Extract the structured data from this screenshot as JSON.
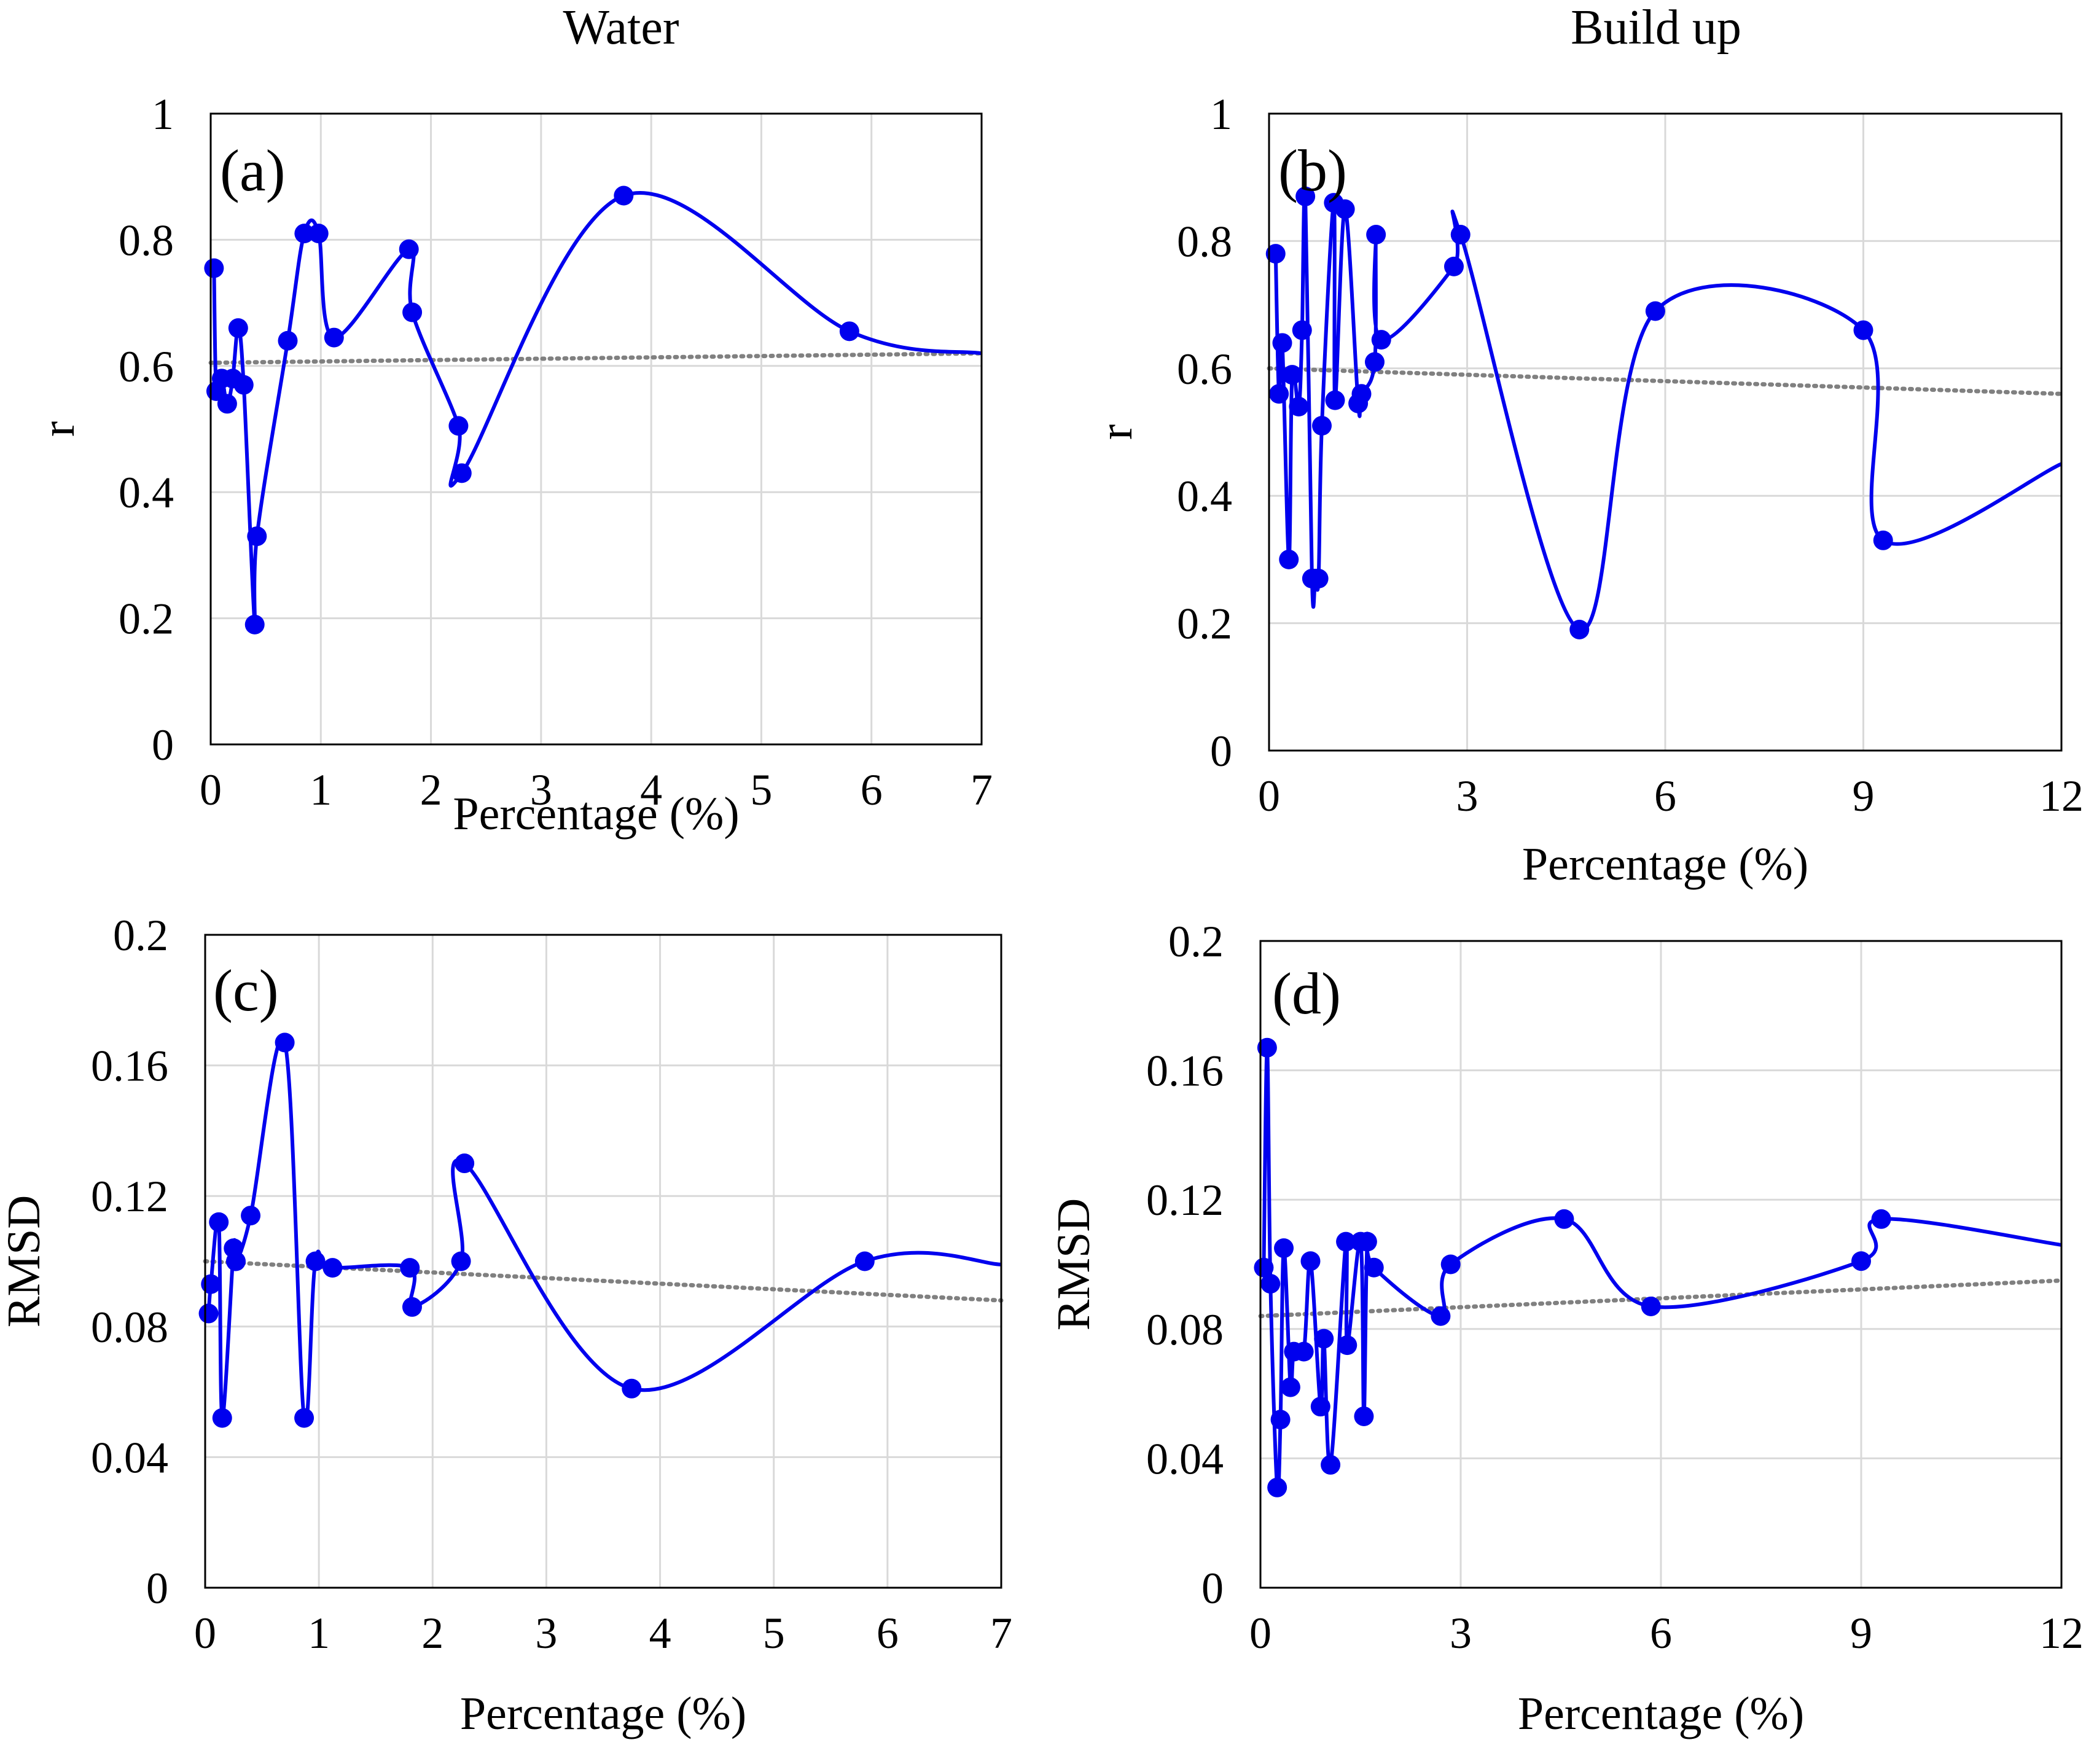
{
  "column_titles": [
    "Water",
    "Build up"
  ],
  "colors": {
    "series": "#0000ee",
    "trend": "#808080",
    "grid": "#d9d9d9",
    "frame": "#000000"
  },
  "chart_data": [
    {
      "id": "a",
      "panel_label": "(a)",
      "type": "line",
      "xlabel": "Percentage (%)",
      "ylabel": "r",
      "xlim": [
        0,
        7
      ],
      "ylim": [
        0,
        1
      ],
      "xticks": [
        0,
        1,
        2,
        3,
        4,
        5,
        6,
        7
      ],
      "xtick_labels": [
        "0",
        "1",
        "2",
        "3",
        "4",
        "5",
        "6",
        "7"
      ],
      "yticks": [
        0,
        0.2,
        0.4,
        0.6,
        0.8,
        1
      ],
      "ytick_labels": [
        "0",
        "0.2",
        "0.4",
        "0.6",
        "0.8",
        "1"
      ],
      "grid": true,
      "legend": "none",
      "series": [
        {
          "x": [
            0.03,
            0.05,
            0.1,
            0.15,
            0.2,
            0.25,
            0.3,
            0.4,
            0.42,
            0.7,
            0.85,
            0.98,
            1.12,
            1.8,
            1.83,
            2.25,
            2.28,
            3.75,
            5.8,
            7.0
          ],
          "y": [
            0.755,
            0.56,
            0.58,
            0.54,
            0.58,
            0.66,
            0.57,
            0.19,
            0.33,
            0.64,
            0.81,
            0.81,
            0.645,
            0.785,
            0.685,
            0.505,
            0.43,
            0.87,
            0.655,
            0.62
          ],
          "marker_end": false
        }
      ],
      "trend": {
        "kind": "linear",
        "x": [
          0,
          7
        ],
        "y": [
          0.605,
          0.62
        ]
      }
    },
    {
      "id": "b",
      "panel_label": "(b)",
      "type": "line",
      "xlabel": "Percentage (%)",
      "ylabel": "r",
      "xlim": [
        0,
        12
      ],
      "ylim": [
        0,
        1
      ],
      "xticks": [
        0,
        3,
        6,
        9,
        12
      ],
      "xtick_labels": [
        "0",
        "3",
        "6",
        "9",
        "12"
      ],
      "yticks": [
        0,
        0.2,
        0.4,
        0.6,
        0.8,
        1
      ],
      "ytick_labels": [
        "0",
        "0.2",
        "0.4",
        "0.6",
        "0.8",
        "1"
      ],
      "grid": true,
      "legend": "none",
      "series": [
        {
          "x": [
            0.1,
            0.15,
            0.2,
            0.3,
            0.35,
            0.45,
            0.5,
            0.55,
            0.65,
            0.7,
            0.75,
            0.8,
            0.98,
            1.0,
            1.15,
            1.35,
            1.4,
            1.6,
            1.62,
            1.7,
            2.8,
            2.9,
            4.7,
            5.85,
            9.0,
            9.3,
            12.0
          ],
          "y": [
            0.78,
            0.56,
            0.64,
            0.3,
            0.59,
            0.54,
            0.66,
            0.87,
            0.27,
            0.27,
            0.27,
            0.51,
            0.86,
            0.55,
            0.85,
            0.545,
            0.56,
            0.61,
            0.81,
            0.645,
            0.76,
            0.81,
            0.19,
            0.69,
            0.66,
            0.33,
            0.45
          ],
          "marker_end": false
        }
      ],
      "trend": {
        "kind": "linear",
        "x": [
          0,
          12
        ],
        "y": [
          0.6,
          0.56
        ]
      }
    },
    {
      "id": "c",
      "panel_label": "(c)",
      "type": "line",
      "xlabel": "Percentage (%)",
      "ylabel": "RMSD",
      "xlim": [
        0,
        7
      ],
      "ylim": [
        0,
        0.2
      ],
      "xticks": [
        0,
        1,
        2,
        3,
        4,
        5,
        6,
        7
      ],
      "xtick_labels": [
        "0",
        "1",
        "2",
        "3",
        "4",
        "5",
        "6",
        "7"
      ],
      "yticks": [
        0,
        0.04,
        0.08,
        0.12,
        0.16,
        0.2
      ],
      "ytick_labels": [
        "0",
        "0.04",
        "0.08",
        "0.12",
        "0.16",
        "0.2"
      ],
      "grid": true,
      "legend": "none",
      "series": [
        {
          "x": [
            0.03,
            0.05,
            0.12,
            0.15,
            0.25,
            0.27,
            0.4,
            0.7,
            0.87,
            0.97,
            1.12,
            1.8,
            1.82,
            2.25,
            2.28,
            3.75,
            5.8,
            7.0
          ],
          "y": [
            0.084,
            0.093,
            0.112,
            0.052,
            0.104,
            0.1,
            0.114,
            0.167,
            0.052,
            0.1,
            0.098,
            0.098,
            0.086,
            0.1,
            0.13,
            0.061,
            0.1,
            0.099
          ],
          "marker_end": false
        }
      ],
      "trend": {
        "kind": "linear",
        "x": [
          0,
          7
        ],
        "y": [
          0.1,
          0.088
        ]
      }
    },
    {
      "id": "d",
      "panel_label": "(d)",
      "type": "line",
      "xlabel": "Percentage (%)",
      "ylabel": "RMSD",
      "xlim": [
        0,
        12
      ],
      "ylim": [
        0,
        0.2
      ],
      "xticks": [
        0,
        3,
        6,
        9,
        12
      ],
      "xtick_labels": [
        "0",
        "3",
        "6",
        "9",
        "12"
      ],
      "yticks": [
        0,
        0.04,
        0.08,
        0.12,
        0.16,
        0.2
      ],
      "ytick_labels": [
        "0",
        "0.04",
        "0.08",
        "0.12",
        "0.16",
        "0.2"
      ],
      "grid": true,
      "legend": "none",
      "series": [
        {
          "x": [
            0.05,
            0.1,
            0.15,
            0.25,
            0.3,
            0.35,
            0.45,
            0.5,
            0.65,
            0.75,
            0.9,
            0.95,
            1.05,
            1.28,
            1.3,
            1.5,
            1.55,
            1.6,
            1.7,
            2.7,
            2.85,
            4.55,
            5.85,
            9.0,
            9.3,
            12.0
          ],
          "y": [
            0.099,
            0.167,
            0.094,
            0.031,
            0.052,
            0.105,
            0.062,
            0.073,
            0.073,
            0.101,
            0.056,
            0.077,
            0.038,
            0.107,
            0.075,
            0.107,
            0.053,
            0.107,
            0.099,
            0.084,
            0.1,
            0.114,
            0.087,
            0.101,
            0.114,
            0.106
          ],
          "marker_end": false
        }
      ],
      "trend": {
        "kind": "linear",
        "x": [
          0,
          12
        ],
        "y": [
          0.084,
          0.095
        ]
      }
    }
  ]
}
